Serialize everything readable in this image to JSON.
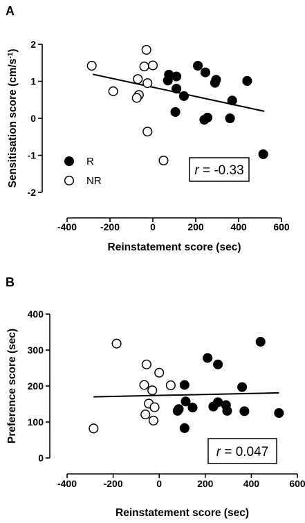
{
  "chart_data": [
    {
      "panel_label": "A",
      "type": "scatter",
      "xlabel": "Reinstatement score (sec)",
      "ylabel": "Sensitisation score (cm/s",
      "ylabel_sup": "-1",
      "ylabel_close": ")",
      "xlim": [
        -400,
        600
      ],
      "ylim": [
        -2,
        2
      ],
      "xticks": [
        -400,
        -200,
        0,
        200,
        400,
        600
      ],
      "yticks": [
        -2,
        -1,
        0,
        1,
        2
      ],
      "legend": {
        "placement": "bottom-left",
        "entries": [
          {
            "label": "R",
            "marker": "filled-circle"
          },
          {
            "label": "NR",
            "marker": "open-circle"
          }
        ]
      },
      "annotation": {
        "r_symbol": "r",
        "r_text": " = -0.33"
      },
      "fit_line": {
        "x": [
          -280,
          520
        ],
        "y": [
          1.19,
          0.19
        ]
      },
      "series": [
        {
          "name": "R",
          "marker": "filled",
          "points": [
            [
              75,
              1.18
            ],
            [
              110,
              1.13
            ],
            [
              70,
              1.02
            ],
            [
              210,
              1.42
            ],
            [
              245,
              1.24
            ],
            [
              295,
              1.04
            ],
            [
              290,
              0.96
            ],
            [
              440,
              1.01
            ],
            [
              110,
              0.8
            ],
            [
              145,
              0.6
            ],
            [
              105,
              0.17
            ],
            [
              370,
              0.48
            ],
            [
              255,
              0.02
            ],
            [
              240,
              -0.04
            ],
            [
              360,
              0.0
            ],
            [
              515,
              -0.97
            ]
          ]
        },
        {
          "name": "NR",
          "marker": "open",
          "points": [
            [
              -285,
              1.42
            ],
            [
              -30,
              1.85
            ],
            [
              -40,
              1.4
            ],
            [
              0,
              1.43
            ],
            [
              -70,
              1.06
            ],
            [
              -25,
              0.95
            ],
            [
              -185,
              0.73
            ],
            [
              -65,
              0.63
            ],
            [
              -75,
              0.55
            ],
            [
              -25,
              -0.36
            ],
            [
              50,
              -1.14
            ]
          ]
        }
      ]
    },
    {
      "panel_label": "B",
      "type": "scatter",
      "xlabel": "Reinstatement score (sec)",
      "ylabel": "Preference score (sec)",
      "xlim": [
        -400,
        600
      ],
      "ylim": [
        0,
        400
      ],
      "xticks": [
        -400,
        -200,
        0,
        200,
        400,
        600
      ],
      "yticks": [
        0,
        100,
        200,
        300,
        400
      ],
      "annotation": {
        "r_symbol": "r",
        "r_text": " = 0.047"
      },
      "fit_line": {
        "x": [
          -285,
          520
        ],
        "y": [
          170,
          181
        ]
      },
      "series": [
        {
          "name": "R",
          "marker": "filled",
          "points": [
            [
              440,
              323
            ],
            [
              210,
              278
            ],
            [
              255,
              260
            ],
            [
              110,
              203
            ],
            [
              360,
              197
            ],
            [
              115,
              157
            ],
            [
              255,
              155
            ],
            [
              290,
              147
            ],
            [
              235,
              143
            ],
            [
              145,
              140
            ],
            [
              85,
              136
            ],
            [
              80,
              131
            ],
            [
              295,
              131
            ],
            [
              370,
              130
            ],
            [
              520,
              125
            ],
            [
              110,
              83
            ]
          ]
        },
        {
          "name": "NR",
          "marker": "open",
          "points": [
            [
              -185,
              318
            ],
            [
              -55,
              260
            ],
            [
              0,
              237
            ],
            [
              -65,
              203
            ],
            [
              50,
              202
            ],
            [
              -30,
              188
            ],
            [
              -45,
              151
            ],
            [
              -20,
              141
            ],
            [
              -60,
              121
            ],
            [
              -25,
              104
            ],
            [
              -285,
              82
            ]
          ]
        }
      ]
    }
  ]
}
